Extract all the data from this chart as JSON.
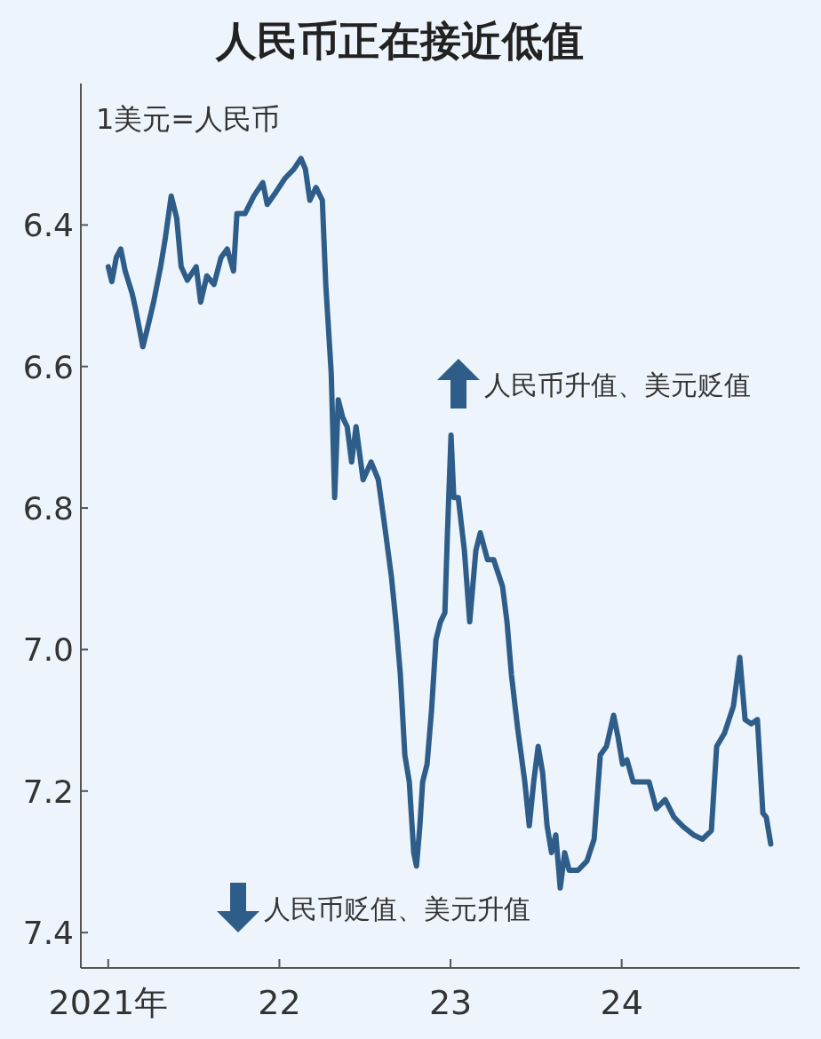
{
  "chart_data": {
    "type": "line",
    "title": "人民币正在接近低值",
    "ylabel": "1美元=人民币",
    "annotations": [
      "人民币升值、美元贬值",
      "人民币贬值、美元升值"
    ],
    "x": [
      2021.0,
      2021.021,
      2021.047,
      2021.073,
      2021.099,
      2021.14,
      2021.161,
      2021.202,
      2021.228,
      2021.265,
      2021.306,
      2021.332,
      2021.368,
      2021.4,
      2021.426,
      2021.462,
      2021.514,
      2021.54,
      2021.576,
      2021.618,
      2021.659,
      2021.695,
      2021.732,
      2021.752,
      2021.799,
      2021.851,
      2021.903,
      2021.929,
      2021.981,
      2022.033,
      2022.085,
      2022.126,
      2022.152,
      2022.178,
      2022.214,
      2022.251,
      2022.271,
      2022.303,
      2022.323,
      2022.344,
      2022.37,
      2022.396,
      2022.422,
      2022.448,
      2022.489,
      2022.536,
      2022.578,
      2022.614,
      2022.655,
      2022.681,
      2022.707,
      2022.733,
      2022.759,
      2022.785,
      2022.801,
      2022.821,
      2022.837,
      2022.863,
      2022.889,
      2022.915,
      2022.941,
      2022.967,
      2022.982,
      2023.003,
      2023.019,
      2023.045,
      2023.081,
      2023.112,
      2023.148,
      2023.174,
      2023.216,
      2023.252,
      2023.304,
      2023.33,
      2023.356,
      2023.392,
      2023.434,
      2023.46,
      2023.486,
      2023.512,
      2023.538,
      2023.564,
      2023.59,
      2023.615,
      2023.641,
      2023.667,
      2023.693,
      2023.745,
      2023.797,
      2023.839,
      2023.875,
      2023.911,
      2023.953,
      2023.979,
      2024.005,
      2024.031,
      2024.067,
      2024.108,
      2024.16,
      2024.202,
      2024.254,
      2024.306,
      2024.358,
      2024.42,
      2024.472,
      2024.524,
      2024.555,
      2024.601,
      2024.653,
      2024.69,
      2024.721,
      2024.757,
      2024.793,
      2024.825,
      2024.845,
      2024.871
    ],
    "series": [
      {
        "color": "#2f5d8a",
        "values": [
          6.459,
          6.48,
          6.446,
          6.434,
          6.465,
          6.497,
          6.52,
          6.572,
          6.547,
          6.509,
          6.459,
          6.421,
          6.359,
          6.39,
          6.459,
          6.478,
          6.459,
          6.509,
          6.472,
          6.484,
          6.446,
          6.434,
          6.465,
          6.384,
          6.384,
          6.359,
          6.34,
          6.371,
          6.353,
          6.334,
          6.321,
          6.306,
          6.321,
          6.365,
          6.347,
          6.365,
          6.484,
          6.61,
          6.785,
          6.647,
          6.672,
          6.685,
          6.735,
          6.685,
          6.76,
          6.735,
          6.76,
          6.823,
          6.898,
          6.961,
          7.036,
          7.149,
          7.187,
          7.287,
          7.306,
          7.249,
          7.187,
          7.162,
          7.086,
          6.986,
          6.961,
          6.948,
          6.835,
          6.697,
          6.785,
          6.785,
          6.86,
          6.961,
          6.86,
          6.835,
          6.873,
          6.873,
          6.911,
          6.961,
          7.036,
          7.111,
          7.187,
          7.249,
          7.187,
          7.137,
          7.174,
          7.249,
          7.287,
          7.262,
          7.337,
          7.287,
          7.312,
          7.312,
          7.299,
          7.268,
          7.149,
          7.137,
          7.093,
          7.124,
          7.162,
          7.156,
          7.187,
          7.187,
          7.187,
          7.225,
          7.212,
          7.237,
          7.25,
          7.262,
          7.268,
          7.256,
          7.137,
          7.118,
          7.08,
          7.011,
          7.099,
          7.105,
          7.099,
          7.231,
          7.237,
          7.275
        ]
      }
    ],
    "xlim": [
      2020.84,
      2025.04
    ],
    "ylim": [
      7.45,
      6.2
    ],
    "xticks": [
      {
        "value": 2021,
        "label": "2021年"
      },
      {
        "value": 2022,
        "label": "22"
      },
      {
        "value": 2023,
        "label": "23"
      },
      {
        "value": 2024,
        "label": "24"
      }
    ],
    "yticks": [
      {
        "value": 6.4,
        "label": "6.4"
      },
      {
        "value": 6.6,
        "label": "6.6"
      },
      {
        "value": 6.8,
        "label": "6.8"
      },
      {
        "value": 7.0,
        "label": "7.0"
      },
      {
        "value": 7.2,
        "label": "7.2"
      },
      {
        "value": 7.4,
        "label": "7.4"
      }
    ],
    "grid": false,
    "line_style": "solid"
  }
}
